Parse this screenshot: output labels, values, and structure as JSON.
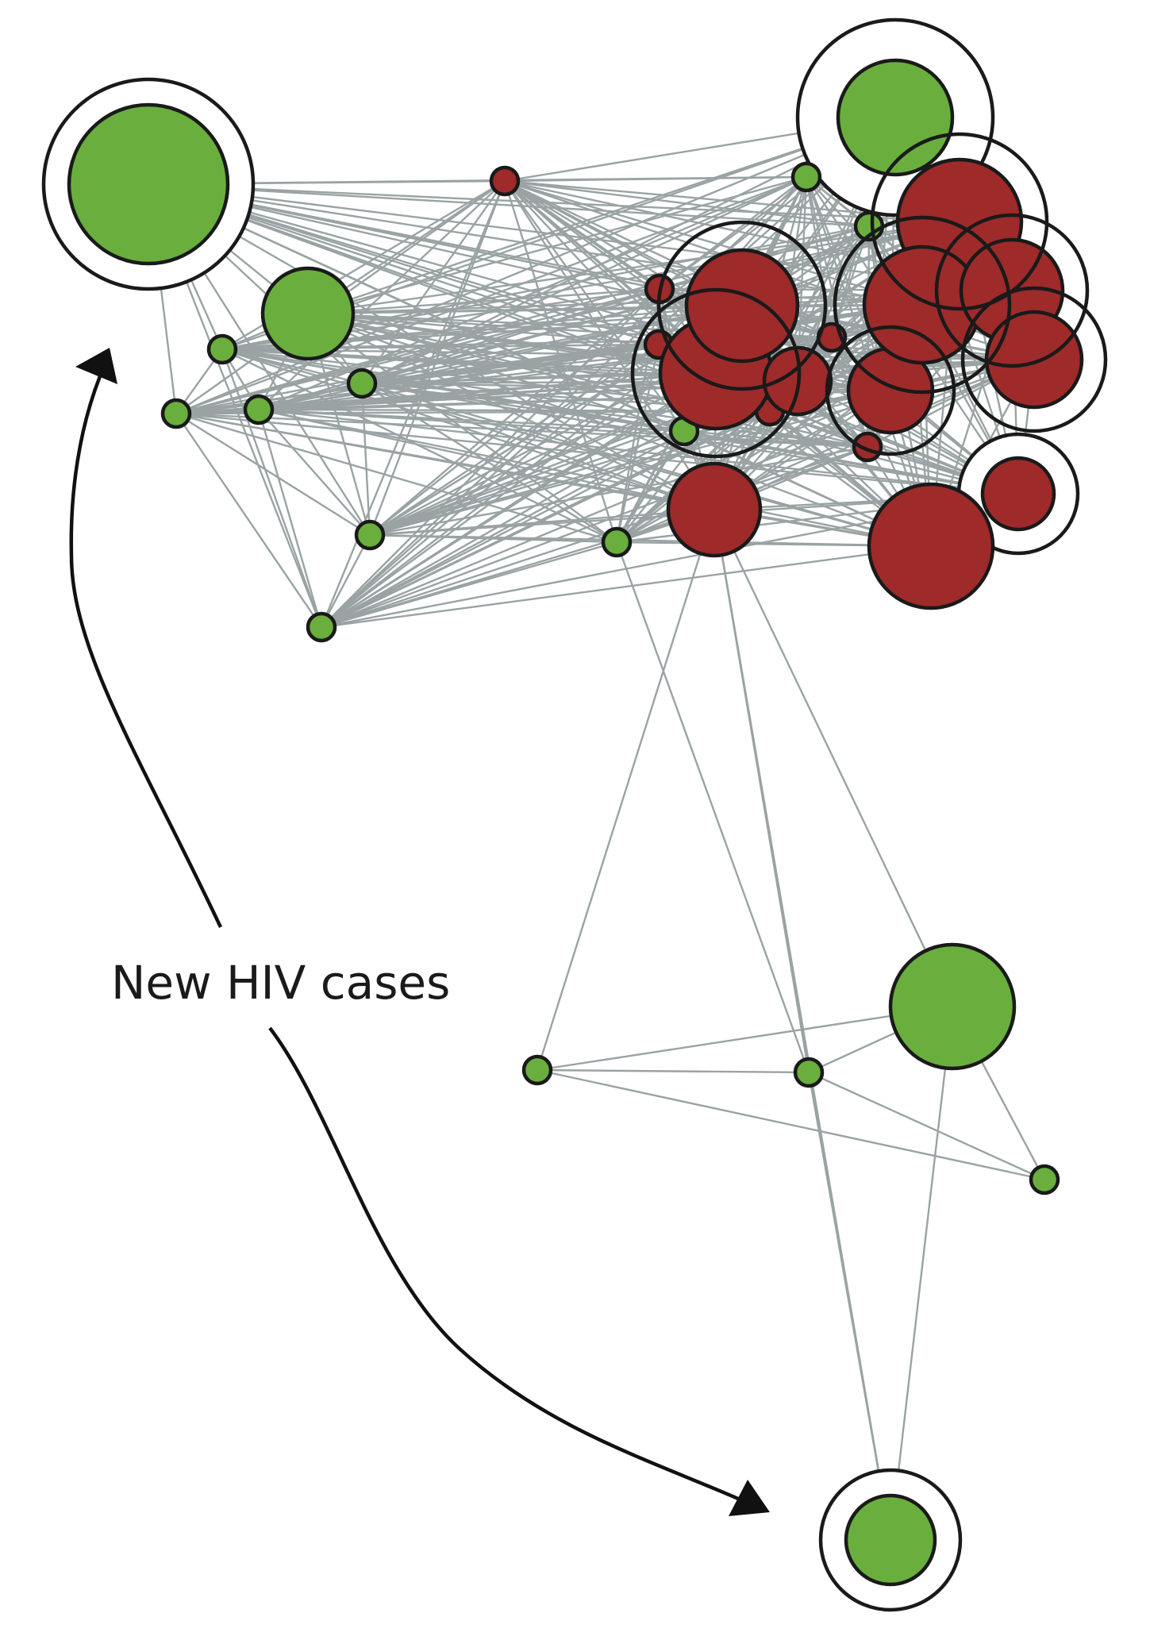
{
  "annotation": {
    "label": "New HIV cases"
  },
  "colors": {
    "green_node": "#6aaf3d",
    "red_node": "#9e2a2a",
    "edge": "#9aa3a3",
    "outline": "#1a1a1a",
    "background": "#ffffff"
  },
  "legend_semantics": {
    "green": "green-node",
    "red": "red-node",
    "ring": "highlight-ring"
  }
}
